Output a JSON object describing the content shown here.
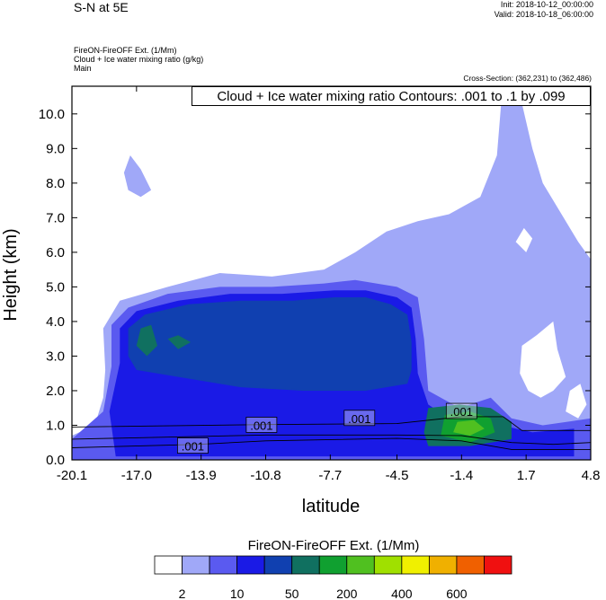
{
  "header": {
    "section_title": "S-N at 5E",
    "init": "Init: 2018-10-12_00:00:00",
    "valid": "Valid: 2018-10-18_06:00:00",
    "field_line1": "FireON-FireOFF Ext.   (1/Mm)",
    "field_line2": "Cloud + Ice water mixing ratio   (g/kg)",
    "field_line3": "Main",
    "cross_section": "Cross-Section: (362,231) to (362,486)",
    "contour_info": "Cloud + Ice water mixing ratio Contours: .001 to .1 by .099"
  },
  "chart_data": {
    "type": "heatmap",
    "xlabel": "latitude",
    "ylabel": "Height (km)",
    "x_ticks": [
      "-20.1",
      "-17.0",
      "-13.9",
      "-10.8",
      "-7.7",
      "-4.5",
      "-1.4",
      "1.7",
      "4.8"
    ],
    "x_tick_values": [
      -20.1,
      -17.0,
      -13.9,
      -10.8,
      -7.7,
      -4.5,
      -1.4,
      1.7,
      4.8
    ],
    "y_ticks": [
      "0.0",
      "1.0",
      "2.0",
      "3.0",
      "4.0",
      "5.0",
      "6.0",
      "7.0",
      "8.0",
      "9.0",
      "10.0"
    ],
    "y_tick_values": [
      0,
      1,
      2,
      3,
      4,
      5,
      6,
      7,
      8,
      9,
      10
    ],
    "xlim": [
      -20.1,
      4.8
    ],
    "ylim": [
      0.0,
      10.8
    ],
    "contour_labels": [
      {
        "text": ".001",
        "x": -14.3,
        "y": 0.4
      },
      {
        "text": ".001",
        "x": -11.0,
        "y": 1.0
      },
      {
        "text": ".001",
        "x": -6.3,
        "y": 1.2
      },
      {
        "text": ".001",
        "x": -1.4,
        "y": 1.4
      }
    ],
    "colorbar": {
      "title": "FireON-FireOFF Ext.  (1/Mm)",
      "colors": [
        "#ffffff",
        "#a0a8f8",
        "#5a5af0",
        "#1a1ae6",
        "#1040b0",
        "#107060",
        "#10a030",
        "#50c020",
        "#a0e000",
        "#f0f000",
        "#f0b000",
        "#f06000",
        "#f01010"
      ],
      "labels": [
        "2",
        "10",
        "50",
        "200",
        "400",
        "600"
      ]
    },
    "fills": [
      {
        "level": 1,
        "color": "#a0a8f8",
        "points": [
          [
            -18.5,
            2.6
          ],
          [
            -18.6,
            3.8
          ],
          [
            -17.8,
            4.6
          ],
          [
            -15.5,
            5.0
          ],
          [
            -13.0,
            5.4
          ],
          [
            -10.5,
            5.3
          ],
          [
            -8.0,
            5.5
          ],
          [
            -6.5,
            6.0
          ],
          [
            -5.0,
            6.6
          ],
          [
            -3.5,
            6.9
          ],
          [
            -2.0,
            7.1
          ],
          [
            -0.5,
            7.6
          ],
          [
            0.3,
            8.8
          ],
          [
            0.5,
            10.3
          ],
          [
            1.5,
            10.3
          ],
          [
            2.0,
            9.0
          ],
          [
            2.5,
            8.0
          ],
          [
            3.5,
            7.0
          ],
          [
            4.2,
            6.3
          ],
          [
            4.8,
            5.8
          ],
          [
            4.8,
            0.0
          ],
          [
            -20.1,
            0.0
          ],
          [
            -20.1,
            0.7
          ],
          [
            -19.0,
            1.0
          ],
          [
            -18.6,
            1.8
          ]
        ]
      },
      {
        "level": 1,
        "color": "#a0a8f8",
        "points": [
          [
            -17.6,
            8.3
          ],
          [
            -17.3,
            8.8
          ],
          [
            -16.8,
            8.4
          ],
          [
            -16.3,
            7.8
          ],
          [
            -16.8,
            7.6
          ],
          [
            -17.4,
            7.8
          ]
        ]
      },
      {
        "level": 2,
        "color": "#5a5af0",
        "points": [
          [
            -18.2,
            2.7
          ],
          [
            -18.2,
            3.9
          ],
          [
            -17.4,
            4.4
          ],
          [
            -15.5,
            4.8
          ],
          [
            -13.0,
            5.0
          ],
          [
            -10.5,
            5.0
          ],
          [
            -8.0,
            5.1
          ],
          [
            -6.5,
            5.2
          ],
          [
            -4.5,
            5.0
          ],
          [
            -3.5,
            4.7
          ],
          [
            -3.2,
            3.5
          ],
          [
            -3.0,
            2.0
          ],
          [
            -1.5,
            1.5
          ],
          [
            0.0,
            1.8
          ],
          [
            1.0,
            1.2
          ],
          [
            2.5,
            1.0
          ],
          [
            4.8,
            1.2
          ],
          [
            4.8,
            0.0
          ],
          [
            -20.1,
            0.0
          ],
          [
            -20.1,
            0.6
          ],
          [
            -18.6,
            1.4
          ]
        ]
      },
      {
        "level": 3,
        "color": "#1a1ae6",
        "points": [
          [
            -17.8,
            2.8
          ],
          [
            -17.8,
            3.8
          ],
          [
            -17.0,
            4.3
          ],
          [
            -15.0,
            4.6
          ],
          [
            -12.5,
            4.8
          ],
          [
            -10.0,
            4.8
          ],
          [
            -7.5,
            4.9
          ],
          [
            -6.0,
            4.9
          ],
          [
            -4.5,
            4.7
          ],
          [
            -3.8,
            4.4
          ],
          [
            -3.6,
            3.5
          ],
          [
            -3.5,
            2.5
          ],
          [
            -3.0,
            1.6
          ],
          [
            -2.0,
            1.2
          ],
          [
            -0.5,
            1.4
          ],
          [
            0.5,
            1.0
          ],
          [
            2.0,
            0.8
          ],
          [
            4.0,
            0.9
          ],
          [
            4.0,
            0.1
          ],
          [
            -18.0,
            0.1
          ],
          [
            -18.3,
            1.4
          ]
        ]
      },
      {
        "level": 4,
        "color": "#1040b0",
        "points": [
          [
            -17.4,
            3.0
          ],
          [
            -17.4,
            3.8
          ],
          [
            -16.6,
            4.2
          ],
          [
            -14.5,
            4.5
          ],
          [
            -12.0,
            4.6
          ],
          [
            -9.5,
            4.6
          ],
          [
            -7.5,
            4.7
          ],
          [
            -6.0,
            4.7
          ],
          [
            -4.8,
            4.5
          ],
          [
            -4.0,
            4.2
          ],
          [
            -3.8,
            3.4
          ],
          [
            -3.8,
            2.6
          ],
          [
            -4.0,
            2.2
          ],
          [
            -6.0,
            2.0
          ],
          [
            -9.0,
            2.0
          ],
          [
            -12.0,
            2.1
          ],
          [
            -15.0,
            2.4
          ],
          [
            -17.0,
            2.6
          ]
        ]
      },
      {
        "level": 5,
        "color": "#107060",
        "points": [
          [
            -17.0,
            3.3
          ],
          [
            -16.8,
            3.8
          ],
          [
            -16.3,
            3.9
          ],
          [
            -16.0,
            3.3
          ],
          [
            -16.5,
            3.0
          ]
        ]
      },
      {
        "level": 5,
        "color": "#107060",
        "points": [
          [
            -15.5,
            3.5
          ],
          [
            -15.0,
            3.6
          ],
          [
            -14.4,
            3.4
          ],
          [
            -15.0,
            3.2
          ]
        ]
      },
      {
        "level": 5,
        "color": "#107060",
        "points": [
          [
            -3.2,
            0.8
          ],
          [
            -3.0,
            1.5
          ],
          [
            -1.5,
            1.6
          ],
          [
            0.0,
            1.5
          ],
          [
            1.0,
            1.1
          ],
          [
            1.0,
            0.6
          ],
          [
            -1.0,
            0.4
          ],
          [
            -3.0,
            0.4
          ]
        ]
      },
      {
        "level": 6,
        "color": "#10a030",
        "points": [
          [
            -2.4,
            0.7
          ],
          [
            -2.2,
            1.3
          ],
          [
            -1.0,
            1.4
          ],
          [
            0.0,
            1.2
          ],
          [
            0.2,
            0.8
          ],
          [
            -1.0,
            0.5
          ]
        ]
      },
      {
        "level": 7,
        "color": "#50c020",
        "points": [
          [
            -1.8,
            0.8
          ],
          [
            -1.6,
            1.1
          ],
          [
            -0.8,
            1.15
          ],
          [
            -0.3,
            0.9
          ],
          [
            -1.0,
            0.7
          ]
        ]
      }
    ],
    "white_gaps": [
      {
        "points": [
          [
            1.4,
            2.5
          ],
          [
            1.5,
            3.3
          ],
          [
            2.2,
            3.6
          ],
          [
            3.0,
            4.0
          ],
          [
            3.2,
            3.2
          ],
          [
            3.6,
            2.4
          ],
          [
            3.0,
            2.0
          ],
          [
            2.4,
            1.8
          ],
          [
            1.8,
            2.0
          ]
        ]
      },
      {
        "points": [
          [
            1.2,
            6.3
          ],
          [
            1.6,
            6.7
          ],
          [
            2.0,
            6.4
          ],
          [
            1.7,
            6.0
          ]
        ]
      },
      {
        "points": [
          [
            3.6,
            1.4
          ],
          [
            3.8,
            2.0
          ],
          [
            4.3,
            2.2
          ],
          [
            4.6,
            1.6
          ],
          [
            4.2,
            1.2
          ]
        ]
      }
    ],
    "contour_lines": [
      {
        "points": [
          [
            -20.1,
            0.95
          ],
          [
            -10.8,
            1.02
          ],
          [
            -4.5,
            1.05
          ],
          [
            -1.4,
            1.25
          ],
          [
            0.6,
            1.25
          ],
          [
            1.5,
            0.85
          ],
          [
            3.5,
            0.85
          ],
          [
            4.8,
            0.85
          ]
        ]
      },
      {
        "points": [
          [
            -20.1,
            0.6
          ],
          [
            -10.8,
            0.72
          ],
          [
            -4.5,
            0.72
          ],
          [
            -1.4,
            0.7
          ],
          [
            1.0,
            0.5
          ],
          [
            3.0,
            0.45
          ],
          [
            4.8,
            0.5
          ]
        ]
      },
      {
        "points": [
          [
            -20.1,
            0.35
          ],
          [
            -14.0,
            0.45
          ],
          [
            -10.8,
            0.55
          ],
          [
            -4.5,
            0.62
          ],
          [
            -1.4,
            0.55
          ],
          [
            1.0,
            0.3
          ],
          [
            4.8,
            0.3
          ]
        ]
      }
    ]
  }
}
